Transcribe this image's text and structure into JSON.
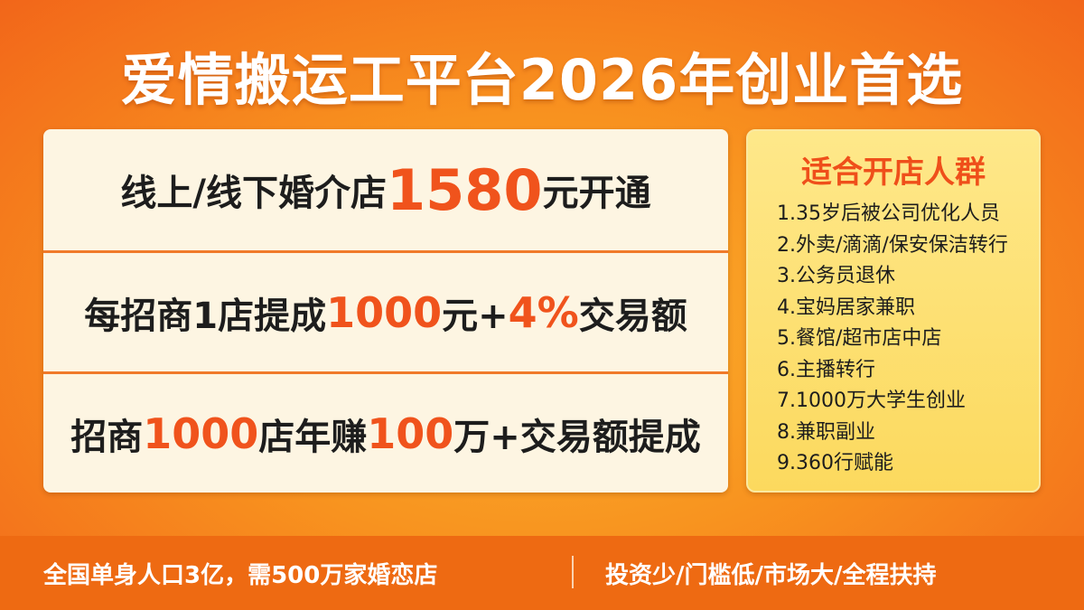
{
  "title": "爱情搬运工平台2026年创业首选",
  "rows": [
    [
      {
        "t": "线上/线下婚介店",
        "h": false
      },
      {
        "t": "1580",
        "h": true
      },
      {
        "t": "元开通",
        "h": false
      }
    ],
    [
      {
        "t": "每招商1店提成",
        "h": false
      },
      {
        "t": "1000",
        "h": true
      },
      {
        "t": "元+",
        "h": false
      },
      {
        "t": "4%",
        "h": true
      },
      {
        "t": "交易额",
        "h": false
      }
    ],
    [
      {
        "t": "招商",
        "h": false
      },
      {
        "t": "1000",
        "h": true
      },
      {
        "t": "店年赚",
        "h": false
      },
      {
        "t": "100",
        "h": true
      },
      {
        "t": "万+交易额提成",
        "h": false
      }
    ]
  ],
  "audience": {
    "title": "适合开店人群",
    "items": [
      "1.35岁后被公司优化人员",
      "2.外卖/滴滴/保安保洁转行",
      "3.公务员退休",
      "4.宝妈居家兼职",
      "5.餐馆/超市店中店",
      "6.主播转行",
      "7.1000万大学生创业",
      "8.兼职副业",
      "9.360行赋能"
    ]
  },
  "footer": {
    "left": "全国单身人口3亿，需500万家婚恋店",
    "right": "投资少/门槛低/市场大/全程扶持"
  },
  "colors": {
    "highlight": "#f0531c",
    "background": "#f8931f",
    "footer": "#ee6a12",
    "panel": "#fdf5e2",
    "audience_panel": "#fde47a"
  }
}
